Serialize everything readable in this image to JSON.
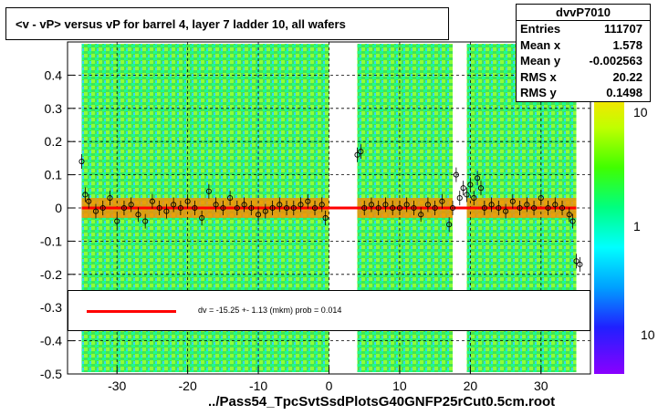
{
  "title": "<v - vP>       versus   vP for barrel 4, layer 7 ladder 10, all wafers",
  "stats": {
    "name": "dvvP7010",
    "rows": [
      {
        "label": "Entries",
        "value": "111707"
      },
      {
        "label": "Mean x",
        "value": "1.578"
      },
      {
        "label": "Mean y",
        "value": "-0.002563"
      },
      {
        "label": "RMS x",
        "value": "20.22"
      },
      {
        "label": "RMS y",
        "value": "0.1498"
      }
    ]
  },
  "fit_legend": "dv =  -15.25 +-  1.13 (mkm) prob = 0.014",
  "footer": "../Pass54_TpcSvtSsdPlotsG40GNFP25rCut0.5cm.root",
  "colors": {
    "fit_line": "#ff0000",
    "markers": "#000000",
    "background": "#ffffff"
  },
  "chart_data": {
    "type": "heatmap",
    "x_range": [
      -37,
      37
    ],
    "y_range": [
      -0.5,
      0.5
    ],
    "x_ticks": [
      -30,
      -20,
      -10,
      0,
      10,
      20,
      30
    ],
    "y_ticks": [
      -0.5,
      -0.4,
      -0.3,
      -0.2,
      -0.1,
      0,
      0.1,
      0.2,
      0.3,
      0.4
    ],
    "y_tick_labels": [
      "-0.5",
      "-0.4",
      "-0.3",
      "-0.2",
      "-0.1",
      "0",
      "0.1",
      "0.2",
      "0.3",
      "0.4"
    ],
    "x_tick_labels": [
      "-30",
      "-20",
      "-10",
      "0",
      "10",
      "20",
      "30"
    ],
    "grid": true,
    "color_scale": {
      "type": "log",
      "tick_labels": [
        "10",
        "1",
        "10"
      ]
    },
    "filled_x_ranges": [
      [
        -35,
        0
      ],
      [
        4,
        35
      ]
    ],
    "empty_x_gap": [
      17.5,
      19.5
    ],
    "fit": {
      "intercept": -0.0001525,
      "slope": 0,
      "x_range": [
        -35,
        35
      ]
    },
    "profile_points": [
      {
        "x": -35,
        "y": 0.14
      },
      {
        "x": -34.5,
        "y": 0.04
      },
      {
        "x": -34,
        "y": 0.02
      },
      {
        "x": -33,
        "y": -0.01
      },
      {
        "x": -32,
        "y": 0.0
      },
      {
        "x": -31,
        "y": 0.03
      },
      {
        "x": -30,
        "y": -0.04
      },
      {
        "x": -29,
        "y": 0.0
      },
      {
        "x": -28,
        "y": 0.01
      },
      {
        "x": -27,
        "y": -0.02
      },
      {
        "x": -26,
        "y": -0.04
      },
      {
        "x": -25,
        "y": 0.02
      },
      {
        "x": -24,
        "y": 0.0
      },
      {
        "x": -23,
        "y": -0.01
      },
      {
        "x": -22,
        "y": 0.01
      },
      {
        "x": -21,
        "y": 0.0
      },
      {
        "x": -20,
        "y": 0.02
      },
      {
        "x": -19,
        "y": 0.0
      },
      {
        "x": -18,
        "y": -0.03
      },
      {
        "x": -17,
        "y": 0.05
      },
      {
        "x": -16,
        "y": 0.01
      },
      {
        "x": -15,
        "y": 0.0
      },
      {
        "x": -14,
        "y": 0.03
      },
      {
        "x": -13,
        "y": 0.0
      },
      {
        "x": -12,
        "y": 0.01
      },
      {
        "x": -11,
        "y": 0.0
      },
      {
        "x": -10,
        "y": -0.02
      },
      {
        "x": -9,
        "y": -0.01
      },
      {
        "x": -8,
        "y": 0.0
      },
      {
        "x": -7,
        "y": 0.01
      },
      {
        "x": -6,
        "y": 0.0
      },
      {
        "x": -5,
        "y": 0.0
      },
      {
        "x": -4,
        "y": 0.01
      },
      {
        "x": -3,
        "y": 0.02
      },
      {
        "x": -2,
        "y": 0.0
      },
      {
        "x": -1,
        "y": 0.01
      },
      {
        "x": -0.5,
        "y": -0.03
      },
      {
        "x": 4,
        "y": 0.16
      },
      {
        "x": 4.5,
        "y": 0.17
      },
      {
        "x": 5,
        "y": 0.0
      },
      {
        "x": 6,
        "y": 0.01
      },
      {
        "x": 7,
        "y": 0.0
      },
      {
        "x": 8,
        "y": 0.01
      },
      {
        "x": 9,
        "y": 0.0
      },
      {
        "x": 10,
        "y": 0.0
      },
      {
        "x": 11,
        "y": 0.01
      },
      {
        "x": 12,
        "y": 0.0
      },
      {
        "x": 13,
        "y": -0.02
      },
      {
        "x": 14,
        "y": 0.01
      },
      {
        "x": 15,
        "y": 0.0
      },
      {
        "x": 16,
        "y": 0.02
      },
      {
        "x": 17,
        "y": -0.05
      },
      {
        "x": 17.5,
        "y": 0.0
      },
      {
        "x": 18,
        "y": 0.1
      },
      {
        "x": 18.5,
        "y": 0.03
      },
      {
        "x": 19,
        "y": 0.06
      },
      {
        "x": 19.5,
        "y": 0.04
      },
      {
        "x": 20,
        "y": 0.07
      },
      {
        "x": 20.5,
        "y": 0.03
      },
      {
        "x": 21,
        "y": 0.09
      },
      {
        "x": 21.5,
        "y": 0.06
      },
      {
        "x": 22,
        "y": 0.0
      },
      {
        "x": 23,
        "y": 0.01
      },
      {
        "x": 24,
        "y": 0.0
      },
      {
        "x": 25,
        "y": -0.01
      },
      {
        "x": 26,
        "y": 0.02
      },
      {
        "x": 27,
        "y": 0.0
      },
      {
        "x": 28,
        "y": 0.01
      },
      {
        "x": 29,
        "y": 0.0
      },
      {
        "x": 30,
        "y": 0.03
      },
      {
        "x": 31,
        "y": 0.0
      },
      {
        "x": 32,
        "y": 0.01
      },
      {
        "x": 33,
        "y": 0.0
      },
      {
        "x": 34,
        "y": -0.02
      },
      {
        "x": 34.5,
        "y": -0.04
      },
      {
        "x": 35,
        "y": -0.16
      },
      {
        "x": 35.5,
        "y": -0.17
      }
    ]
  }
}
